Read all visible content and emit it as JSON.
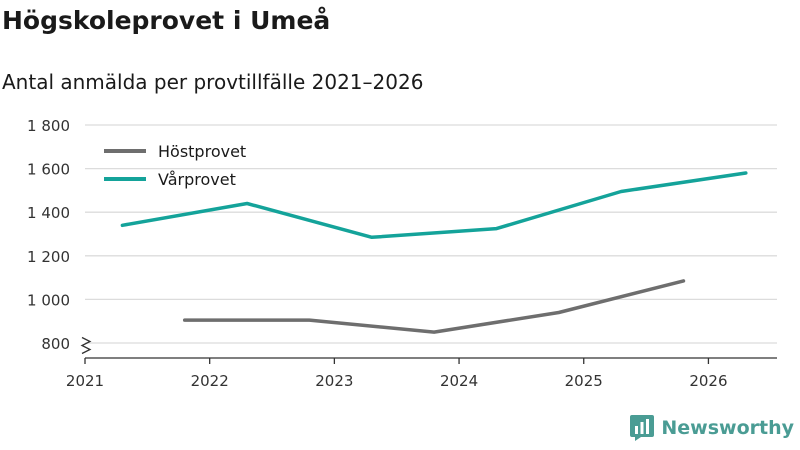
{
  "header": {
    "title": "Högskoleprovet i Umeå",
    "subtitle": "Antal anmälda per provtillfälle 2021–2026"
  },
  "brand": {
    "name": "Newsworthy",
    "icon": "newsworthy-logo-icon"
  },
  "colors": {
    "hostprovet": "#6e6e6e",
    "varprovet": "#14a39a",
    "brand": "#4a9c94",
    "grid": "#dcdcdc",
    "axis": "#333333"
  },
  "chart_data": {
    "type": "line",
    "title": "Högskoleprovet i Umeå",
    "subtitle": "Antal anmälda per provtillfälle 2021–2026",
    "xlabel": "",
    "ylabel": "",
    "x_ticks": [
      2021,
      2022,
      2023,
      2024,
      2025,
      2026
    ],
    "x_tick_labels": [
      "2021",
      "2022",
      "2023",
      "2024",
      "2025",
      "2026"
    ],
    "y_ticks": [
      800,
      1000,
      1200,
      1400,
      1600,
      1800
    ],
    "y_tick_labels": [
      "800",
      "1 000",
      "1 200",
      "1 400",
      "1 600",
      "1 800"
    ],
    "xlim": [
      2021,
      2026.55
    ],
    "ylim": [
      800,
      1800
    ],
    "y_axis_break": true,
    "grid": true,
    "legend_position": "top-left",
    "series": [
      {
        "name": "Höstprovet",
        "color": "#6e6e6e",
        "points": [
          {
            "x": 2021.8,
            "y": 905
          },
          {
            "x": 2022.8,
            "y": 905
          },
          {
            "x": 2023.8,
            "y": 850
          },
          {
            "x": 2024.8,
            "y": 940
          },
          {
            "x": 2025.8,
            "y": 1085
          }
        ]
      },
      {
        "name": "Vårprovet",
        "color": "#14a39a",
        "points": [
          {
            "x": 2021.3,
            "y": 1340
          },
          {
            "x": 2022.3,
            "y": 1440
          },
          {
            "x": 2023.3,
            "y": 1285
          },
          {
            "x": 2024.3,
            "y": 1325
          },
          {
            "x": 2025.3,
            "y": 1495
          },
          {
            "x": 2026.3,
            "y": 1580
          }
        ]
      }
    ]
  }
}
